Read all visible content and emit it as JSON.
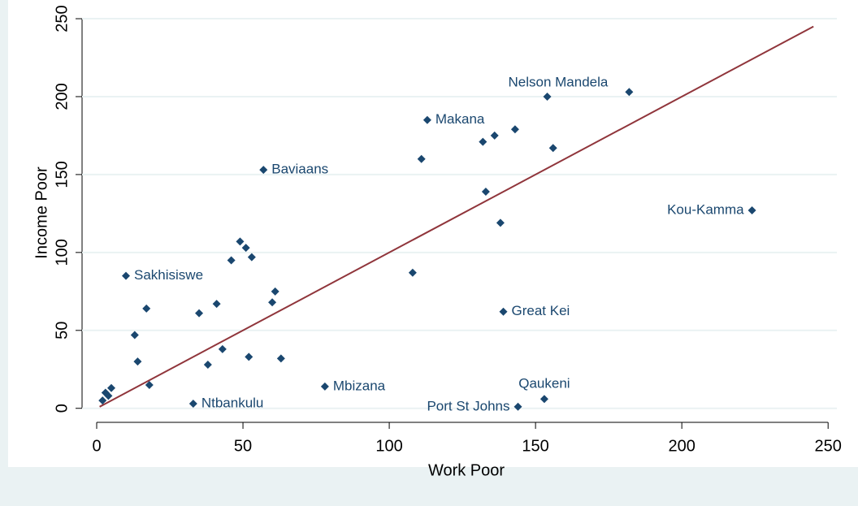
{
  "chart_data": {
    "type": "scatter",
    "x_label": "Work Poor",
    "y_label": "Income Poor",
    "x": [
      2,
      3,
      4,
      5,
      10,
      13,
      14,
      17,
      18,
      33,
      35,
      38,
      41,
      43,
      46,
      49,
      51,
      52,
      53,
      57,
      60,
      61,
      63,
      78,
      108,
      111,
      113,
      132,
      133,
      136,
      138,
      139,
      143,
      144,
      153,
      154,
      156,
      182,
      224
    ],
    "series": [
      {
        "color": "#1a476f",
        "values": [
          5,
          10,
          8,
          13,
          85,
          47,
          30,
          64,
          15,
          3,
          61,
          28,
          67,
          38,
          95,
          107,
          103,
          33,
          97,
          153,
          68,
          75,
          32,
          14,
          87,
          160,
          185,
          171,
          139,
          175,
          119,
          62,
          179,
          1,
          6,
          200,
          167,
          203,
          127
        ],
        "point_labels": [
          null,
          null,
          null,
          null,
          "Sakhisiswe",
          null,
          null,
          null,
          null,
          "Ntbankulu",
          null,
          null,
          null,
          null,
          null,
          null,
          null,
          null,
          null,
          "Baviaans",
          null,
          null,
          null,
          "Mbizana",
          null,
          null,
          "Makana",
          null,
          null,
          null,
          null,
          "Great Kei",
          null,
          "Port St Johns",
          "Qaukeni",
          null,
          null,
          "Nelson Mandela",
          "Kou-Kamma"
        ]
      }
    ],
    "reference_line": {
      "x": [
        1,
        245
      ],
      "y": [
        1,
        245
      ],
      "color": "#90353b"
    },
    "xlim": [
      -5,
      253
    ],
    "ylim": [
      -9,
      262
    ],
    "xticks": [
      0,
      50,
      100,
      150,
      200,
      250
    ],
    "yticks": [
      0,
      50,
      100,
      150,
      200,
      250
    ],
    "grid": true
  }
}
